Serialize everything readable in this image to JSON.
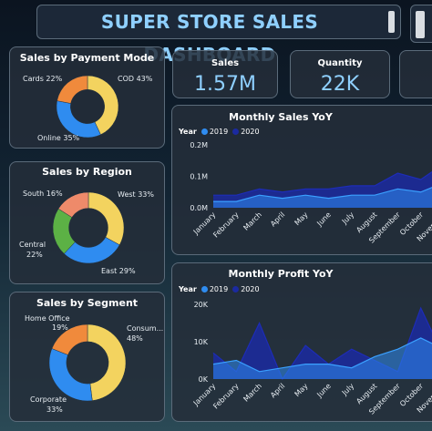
{
  "header": {
    "title": "SUPER STORE SALES DASHBOARD"
  },
  "colors": {
    "blue": "#2f8cf0",
    "yellow": "#f3d35f",
    "orange": "#f08a3c",
    "green": "#5cb145",
    "salmon": "#ee8a6a",
    "navy": "#1b2aa0",
    "accent": "#8fd0ff"
  },
  "kpis": [
    {
      "label": "Sales",
      "value": "1.57M"
    },
    {
      "label": "Quantity",
      "value": "22K"
    }
  ],
  "payment": {
    "title": "Sales by Payment Mode",
    "labels": [
      "Cards 22%",
      "COD 43%",
      "Online 35%"
    ]
  },
  "region": {
    "title": "Sales by Region",
    "labels": [
      "South 16%",
      "West 33%",
      "Central",
      "22%",
      "East 29%"
    ]
  },
  "segment": {
    "title": "Sales by Segment",
    "labels": [
      "Home Office",
      "19%",
      "Consum...",
      "48%",
      "Corporate",
      "33%"
    ]
  },
  "monthly_sales": {
    "title": "Monthly Sales YoY",
    "legend_label": "Year",
    "series_names": [
      "2019",
      "2020"
    ],
    "yticks": [
      "0.2M",
      "0.1M",
      "0.0M"
    ],
    "months": [
      "January",
      "February",
      "March",
      "April",
      "May",
      "June",
      "July",
      "August",
      "September",
      "October",
      "November"
    ]
  },
  "monthly_profit": {
    "title": "Monthly Profit YoY",
    "legend_label": "Year",
    "series_names": [
      "2019",
      "2020"
    ],
    "yticks": [
      "20K",
      "10K",
      "0K"
    ],
    "months": [
      "January",
      "February",
      "March",
      "April",
      "May",
      "June",
      "July",
      "August",
      "September",
      "October",
      "November"
    ]
  },
  "chart_data": [
    {
      "type": "pie",
      "title": "Sales by Payment Mode",
      "categories": [
        "COD",
        "Online",
        "Cards"
      ],
      "values": [
        43,
        35,
        22
      ],
      "colors": [
        "#f3d35f",
        "#2f8cf0",
        "#f08a3c"
      ]
    },
    {
      "type": "pie",
      "title": "Sales by Region",
      "categories": [
        "West",
        "East",
        "Central",
        "South"
      ],
      "values": [
        33,
        29,
        22,
        16
      ],
      "colors": [
        "#f3d35f",
        "#2f8cf0",
        "#5cb145",
        "#ee8a6a"
      ]
    },
    {
      "type": "pie",
      "title": "Sales by Segment",
      "categories": [
        "Consumer",
        "Corporate",
        "Home Office"
      ],
      "values": [
        48,
        33,
        19
      ],
      "colors": [
        "#f3d35f",
        "#2f8cf0",
        "#f08a3c"
      ]
    },
    {
      "type": "area",
      "title": "Monthly Sales YoY",
      "categories": [
        "January",
        "February",
        "March",
        "April",
        "May",
        "June",
        "July",
        "August",
        "September",
        "October",
        "November"
      ],
      "ylim": [
        0,
        0.2
      ],
      "series": [
        {
          "name": "2019",
          "values": [
            0.02,
            0.02,
            0.04,
            0.03,
            0.04,
            0.03,
            0.04,
            0.04,
            0.06,
            0.05,
            0.08
          ]
        },
        {
          "name": "2020",
          "values": [
            0.04,
            0.04,
            0.06,
            0.05,
            0.06,
            0.06,
            0.07,
            0.07,
            0.11,
            0.09,
            0.14
          ]
        }
      ]
    },
    {
      "type": "area",
      "title": "Monthly Profit YoY",
      "categories": [
        "January",
        "February",
        "March",
        "April",
        "May",
        "June",
        "July",
        "August",
        "September",
        "October",
        "November"
      ],
      "ylim": [
        0,
        20
      ],
      "series": [
        {
          "name": "2019",
          "values": [
            4,
            5,
            2,
            3,
            4,
            4,
            3,
            6,
            8,
            11,
            8
          ]
        },
        {
          "name": "2020",
          "values": [
            7,
            2,
            15,
            0,
            9,
            4,
            8,
            5,
            2,
            19,
            6
          ]
        }
      ]
    }
  ]
}
